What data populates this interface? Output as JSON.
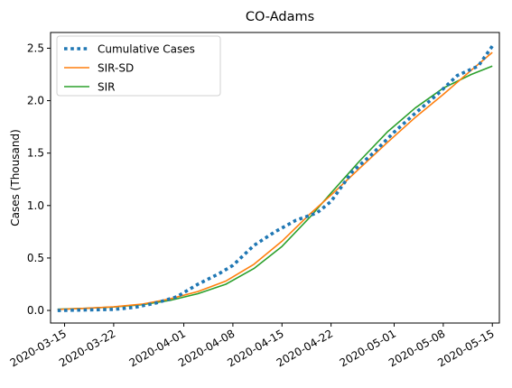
{
  "chart_data": {
    "type": "line",
    "title": "CO-Adams",
    "xlabel": "",
    "ylabel": "Cases (Thousand)",
    "x_ticks": [
      "2020-03-15",
      "2020-03-22",
      "2020-04-01",
      "2020-04-08",
      "2020-04-15",
      "2020-04-22",
      "2020-05-01",
      "2020-05-08",
      "2020-05-15"
    ],
    "y_ticks": [
      "0.0",
      "0.5",
      "1.0",
      "1.5",
      "2.0",
      "2.5"
    ],
    "xlim": [
      "2020-03-13",
      "2020-05-16"
    ],
    "ylim": [
      -0.12,
      2.65
    ],
    "grid": false,
    "legend_position": "upper left",
    "series": [
      {
        "name": "Cumulative Cases",
        "style": "dotted",
        "color": "#1f77b4",
        "x": [
          "2020-03-14",
          "2020-03-18",
          "2020-03-22",
          "2020-03-25",
          "2020-03-28",
          "2020-03-31",
          "2020-04-03",
          "2020-04-06",
          "2020-04-08",
          "2020-04-11",
          "2020-04-14",
          "2020-04-17",
          "2020-04-20",
          "2020-04-22",
          "2020-04-25",
          "2020-04-28",
          "2020-05-01",
          "2020-05-04",
          "2020-05-07",
          "2020-05-10",
          "2020-05-13",
          "2020-05-15"
        ],
        "y": [
          0.0,
          0.005,
          0.01,
          0.03,
          0.07,
          0.13,
          0.25,
          0.35,
          0.43,
          0.62,
          0.75,
          0.86,
          0.93,
          1.04,
          1.32,
          1.5,
          1.7,
          1.88,
          2.05,
          2.24,
          2.33,
          2.52
        ]
      },
      {
        "name": "SIR-SD",
        "style": "solid",
        "color": "#ff7f0e",
        "x": [
          "2020-03-14",
          "2020-03-18",
          "2020-03-22",
          "2020-03-26",
          "2020-03-30",
          "2020-04-03",
          "2020-04-07",
          "2020-04-11",
          "2020-04-15",
          "2020-04-19",
          "2020-04-22",
          "2020-04-26",
          "2020-04-30",
          "2020-05-04",
          "2020-05-08",
          "2020-05-12",
          "2020-05-15"
        ],
        "y": [
          0.01,
          0.02,
          0.035,
          0.06,
          0.11,
          0.18,
          0.28,
          0.44,
          0.66,
          0.92,
          1.1,
          1.35,
          1.6,
          1.84,
          2.06,
          2.29,
          2.46
        ]
      },
      {
        "name": "SIR",
        "style": "solid",
        "color": "#2ca02c",
        "x": [
          "2020-03-14",
          "2020-03-18",
          "2020-03-22",
          "2020-03-26",
          "2020-03-30",
          "2020-04-03",
          "2020-04-07",
          "2020-04-11",
          "2020-04-15",
          "2020-04-19",
          "2020-04-22",
          "2020-04-26",
          "2020-04-30",
          "2020-05-04",
          "2020-05-08",
          "2020-05-12",
          "2020-05-15"
        ],
        "y": [
          0.012,
          0.02,
          0.033,
          0.055,
          0.095,
          0.16,
          0.25,
          0.4,
          0.61,
          0.89,
          1.12,
          1.42,
          1.7,
          1.93,
          2.12,
          2.25,
          2.33
        ]
      }
    ]
  }
}
